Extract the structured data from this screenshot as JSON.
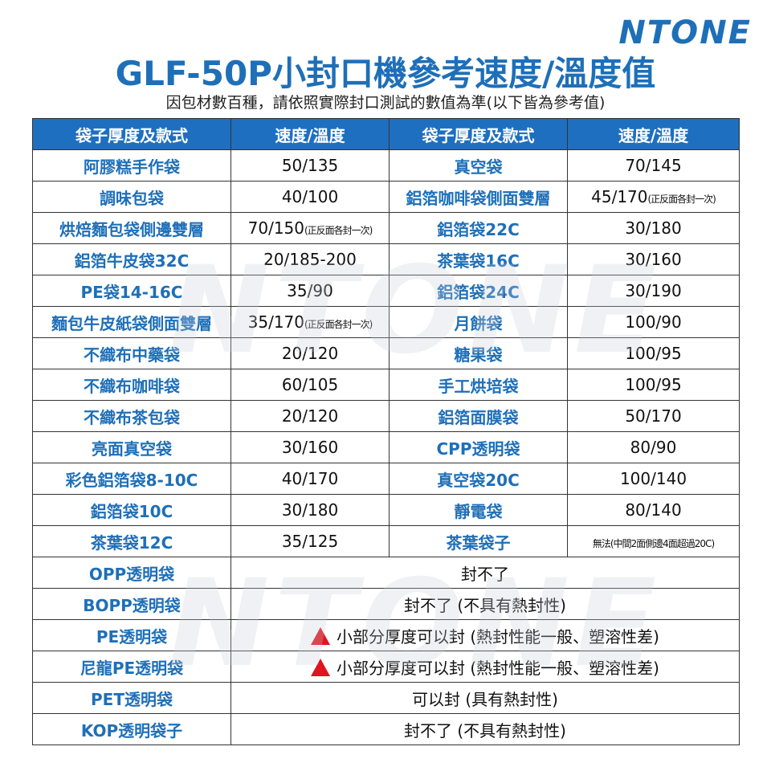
{
  "logo": "NTONE",
  "title": "GLF-50P小封口機參考速度/溫度值",
  "subtitle": "因包材數百種，請依照實際封口測試的數值為準(以下皆為參考值)",
  "watermark": "NTONE",
  "table": {
    "header": [
      "袋子厚度及款式",
      "速度/溫度",
      "袋子厚度及款式",
      "速度/溫度"
    ],
    "rows": [
      [
        "阿膠糕手作袋",
        "50/135",
        "真空袋",
        "70/145"
      ],
      [
        "調味包袋",
        "40/100",
        "鋁箔咖啡袋側面雙層",
        {
          "main": "45/170",
          "note": "(正反面各封一次)"
        }
      ],
      [
        "烘焙麵包袋側邊雙層",
        {
          "main": "70/150",
          "note": "(正反面各封一次)"
        },
        "鋁箔袋22C",
        "30/180"
      ],
      [
        "鋁箔牛皮袋32C",
        "20/185-200",
        "茶葉袋16C",
        "30/160"
      ],
      [
        "PE袋14-16C",
        "35/90",
        "鋁箔袋24C",
        "30/190"
      ],
      [
        "麵包牛皮紙袋側面雙層",
        {
          "main": "35/170",
          "note": "(正反面各封一次)"
        },
        "月餅袋",
        "100/90"
      ],
      [
        "不織布中藥袋",
        "20/120",
        "糖果袋",
        "100/95"
      ],
      [
        "不織布咖啡袋",
        "60/105",
        "手工烘培袋",
        "100/95"
      ],
      [
        "不織布茶包袋",
        "20/120",
        "鋁箔面膜袋",
        "50/170"
      ],
      [
        "亮面真空袋",
        "30/160",
        "CPP透明袋",
        "80/90"
      ],
      [
        "彩色鋁箔袋8-10C",
        "40/170",
        "真空袋20C",
        "100/140"
      ],
      [
        "鋁箔袋10C",
        "30/180",
        "靜電袋",
        "80/140"
      ],
      [
        "茶葉袋12C",
        "35/125",
        "茶葉袋子",
        {
          "note": "無法(中間2面側邊4面超過20C)"
        }
      ]
    ],
    "merged_rows": [
      {
        "name": "OPP透明袋",
        "text": "封不了",
        "warning": false
      },
      {
        "name": "BOPP透明袋",
        "text": "封不了 (不具有熱封性)",
        "warning": false
      },
      {
        "name": "PE透明袋",
        "text": "小部分厚度可以封 (熱封性能一般、塑溶性差)",
        "warning": true
      },
      {
        "name": "尼龍PE透明袋",
        "text": "小部分厚度可以封 (熱封性能一般、塑溶性差)",
        "warning": true
      },
      {
        "name": "PET透明袋",
        "text": "可以封 (具有熱封性)",
        "warning": false
      },
      {
        "name": "KOP透明袋子",
        "text": "封不了 (不具有熱封性)",
        "warning": false
      }
    ]
  }
}
